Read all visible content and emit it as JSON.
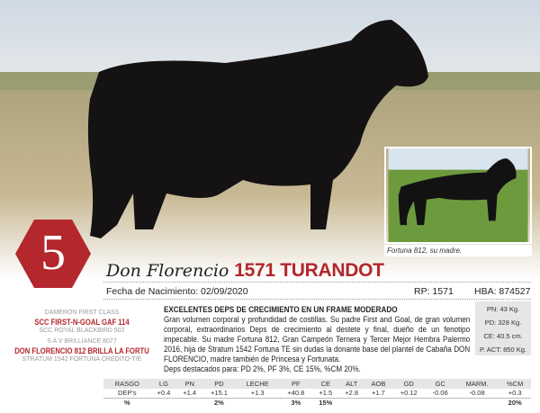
{
  "lot_number": "5",
  "inset_caption": "Fortuna 812, su madre.",
  "title": {
    "prefix": "Don Florencio",
    "name": "1571 TURANDOT"
  },
  "info": {
    "birth": "Fecha de Nacimiento: 02/09/2020",
    "rp": "RP: 1571",
    "hba": "HBA: 874527"
  },
  "pedigree": {
    "sire_sire": "DAMERON FIRST CLASS",
    "sire": "SCC FIRST-N-GOAL GAF 114",
    "sire_dam": "SCC ROYAL BLACKBIRD 502",
    "dam_sire": "S A V BRILLIANCE 8077",
    "dam": "DON FLORENCIO 812 BRILLA LA FORTU",
    "dam_dam": "STRATUM 1542 FORTUNA CREDITO-T/E"
  },
  "description": {
    "heading": "EXCELENTES DEPS DE CRECIMIENTO EN UN FRAME MODERADO",
    "body": "Gran volumen corporal y profundidad de costillas. Su padre First and Goal, de gran volumen corporal, extraordinarios Deps de crecimiento al destete y final, dueño de un fenotipo impecable. Su madre Fortuna 812, Gran Campeón Ternera y Tercer Mejor Hembra Palermo 2016, hija de Stratum 1542 Fortuna TE sin dudas la donante base del plantel  de Cabaña DON FLORENCIO, madre también de Princesa y Fortunata.",
    "highlight": "Deps destacados para: PD 2%, PF 3%, CE 15%, %CM 20%."
  },
  "stats": [
    "PN: 43 Kg.",
    "PD: 328 Kg.",
    "CE: 40.5 cm.",
    "P. ACT: 850 Kg."
  ],
  "deps_table": {
    "header": [
      "RASGO",
      "LG",
      "PN",
      "PD",
      "LECHE",
      "PF",
      "CE",
      "ALT",
      "AOB",
      "GD",
      "GC",
      "MARM.",
      "%CM"
    ],
    "deps": [
      "DEP's",
      "+0.4",
      "+1.4",
      "+15.1",
      "+1.3",
      "+40.8",
      "+1.5",
      "+2.8",
      "+1.7",
      "+0.12",
      "-0.06",
      "-0.08",
      "+0.3"
    ],
    "pct": [
      "%",
      "",
      "",
      "2%",
      "",
      "3%",
      "15%",
      "",
      "",
      "",
      "",
      "",
      "20%"
    ]
  },
  "colors": {
    "accent": "#b3272d",
    "box": "#e6e6e6"
  }
}
